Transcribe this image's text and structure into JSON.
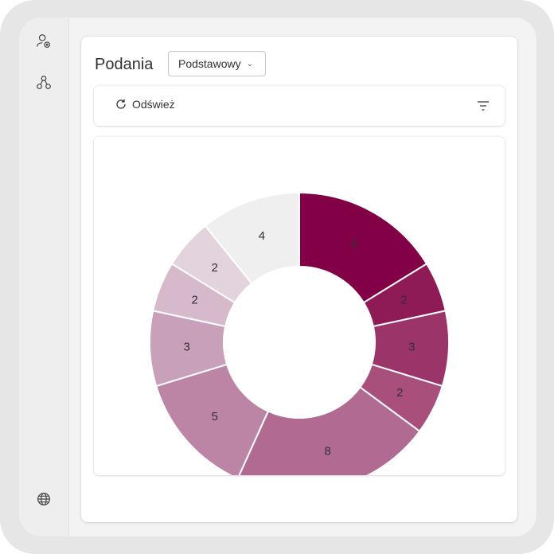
{
  "rail": {
    "items": [
      {
        "icon": "user-settings-icon"
      },
      {
        "icon": "org-hierarchy-icon"
      },
      {
        "icon": "globe-icon"
      }
    ]
  },
  "header": {
    "title": "Podania",
    "view_selector": {
      "selected": "Podstawowy",
      "icon": "chevron-down-icon"
    }
  },
  "toolbar": {
    "refresh_label": "Odśwież",
    "refresh_icon": "refresh-icon",
    "filter_icon": "filter-icon"
  },
  "chart_data": {
    "type": "pie",
    "donut": true,
    "values": [
      6,
      2,
      3,
      2,
      8,
      5,
      3,
      2,
      2,
      4
    ],
    "colors": [
      "#820045",
      "#8e1a56",
      "#9b3469",
      "#a84f7c",
      "#b16b92",
      "#bc85a6",
      "#c9a0b9",
      "#d6bacb",
      "#e3d3dd",
      "#efefef"
    ],
    "labels": [
      "6",
      "2",
      "3",
      "2",
      "8",
      "5",
      "3",
      "2",
      "2",
      "4"
    ]
  }
}
